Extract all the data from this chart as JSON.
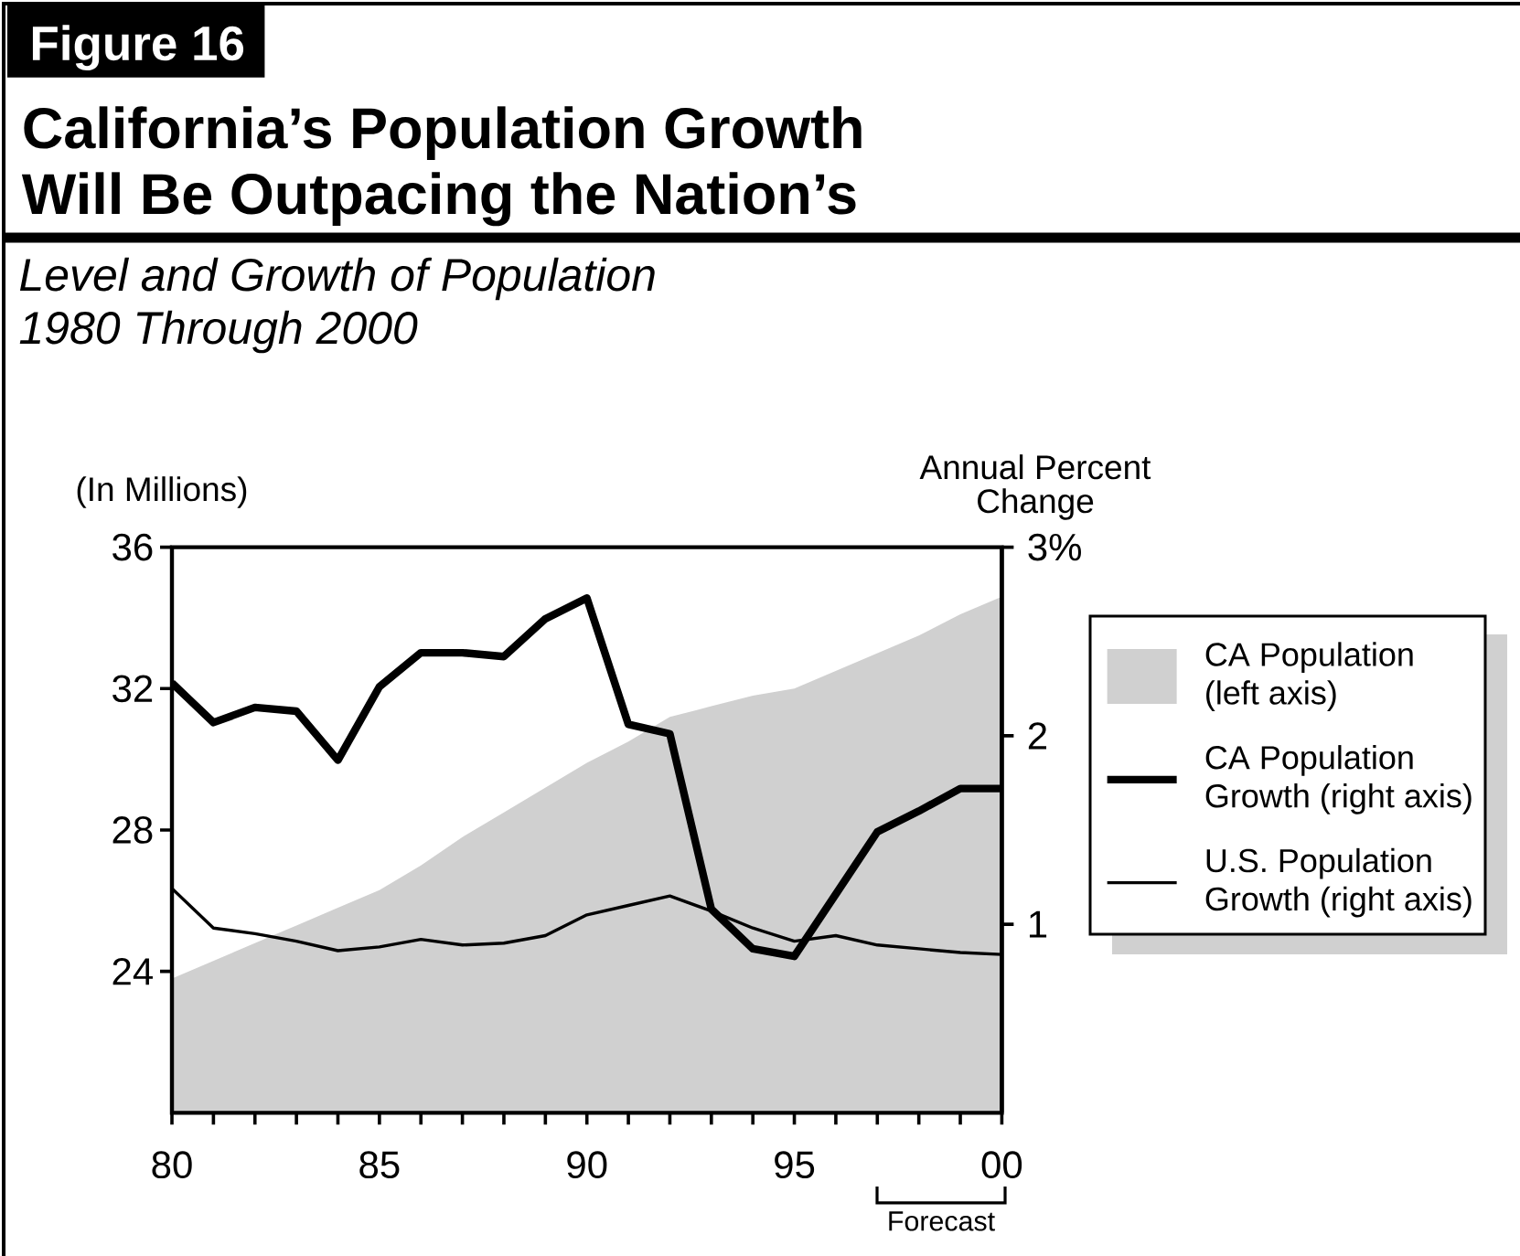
{
  "chart_data": {
    "type": "line",
    "title": "California’s Population Growth Will Be Outpacing the Nation’s",
    "subtitle": "Level and Growth of Population 1980 Through 2000",
    "ylabel": "(In Millions)",
    "y2label": "Annual Percent Change",
    "annotations": [
      "Figure 16",
      "Forecast"
    ],
    "x": [
      1980,
      1981,
      1982,
      1983,
      1984,
      1985,
      1986,
      1987,
      1988,
      1989,
      1990,
      1991,
      1992,
      1993,
      1994,
      1995,
      1996,
      1997,
      1998,
      1999,
      2000
    ],
    "series": [
      {
        "name": "CA Population (left axis)",
        "type": "area",
        "color": "#d0d0d0",
        "values": [
          23.8,
          24.3,
          24.8,
          25.3,
          25.8,
          26.3,
          27.0,
          27.8,
          28.5,
          29.2,
          29.9,
          30.5,
          31.2,
          31.5,
          31.8,
          32.0,
          32.5,
          33.0,
          33.5,
          34.1,
          34.6
        ]
      },
      {
        "name": "CA Population Growth (right axis)",
        "color": "#000000",
        "axis": "y2",
        "values": [
          2.28,
          2.07,
          2.15,
          2.13,
          1.87,
          2.26,
          2.44,
          2.44,
          2.42,
          2.62,
          2.73,
          2.06,
          2.01,
          1.08,
          0.87,
          0.83,
          1.16,
          1.49,
          1.6,
          1.72,
          1.72
        ]
      },
      {
        "name": "U.S. Population Growth (right axis)",
        "color": "#000000",
        "axis": "y2",
        "values": [
          1.19,
          0.98,
          0.95,
          0.91,
          0.86,
          0.88,
          0.92,
          0.89,
          0.9,
          0.94,
          1.05,
          1.1,
          1.15,
          1.07,
          0.98,
          0.91,
          0.94,
          0.89,
          0.87,
          0.85,
          0.84
        ]
      }
    ],
    "xlim": [
      1980,
      2000
    ],
    "xticks": [
      {
        "value": 1980,
        "label": "80"
      },
      {
        "value": 1981,
        "label": null
      },
      {
        "value": 1982,
        "label": null
      },
      {
        "value": 1983,
        "label": null
      },
      {
        "value": 1984,
        "label": null
      },
      {
        "value": 1985,
        "label": "85"
      },
      {
        "value": 1986,
        "label": null
      },
      {
        "value": 1987,
        "label": null
      },
      {
        "value": 1988,
        "label": null
      },
      {
        "value": 1989,
        "label": null
      },
      {
        "value": 1990,
        "label": "90"
      },
      {
        "value": 1991,
        "label": null
      },
      {
        "value": 1992,
        "label": null
      },
      {
        "value": 1993,
        "label": null
      },
      {
        "value": 1994,
        "label": null
      },
      {
        "value": 1995,
        "label": "95"
      },
      {
        "value": 1996,
        "label": null
      },
      {
        "value": 1997,
        "label": null
      },
      {
        "value": 1998,
        "label": null
      },
      {
        "value": 1999,
        "label": null
      },
      {
        "value": 2000,
        "label": "00"
      }
    ],
    "ylim": [
      20,
      36
    ],
    "yticks": [
      24,
      28,
      32,
      36
    ],
    "y2lim": [
      0,
      3
    ],
    "y2ticks": [
      1,
      2,
      {
        "value": 3,
        "label": "3%"
      }
    ],
    "legend": "right",
    "marker": "none"
  }
}
